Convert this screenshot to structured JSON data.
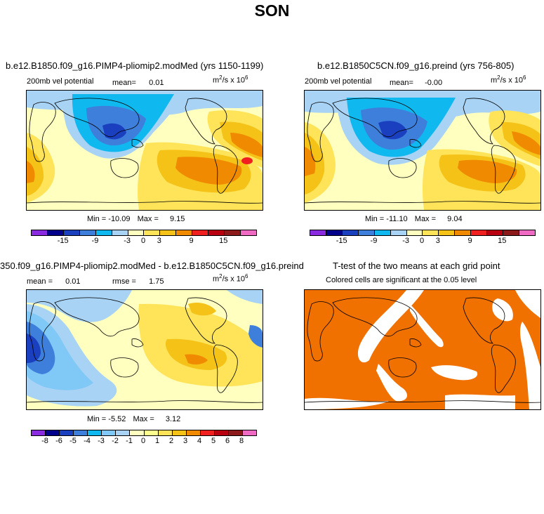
{
  "figure": {
    "title": "SON"
  },
  "panels": {
    "top_left": {
      "title": "b.e12.B1850.f09_g16.PIMP4-pliomip2.modMed (yrs 1150-1199)",
      "left_label": "200mb vel potential",
      "mean_label": "mean=",
      "mean_value": "0.01",
      "units_base": "m",
      "units_exp": "2",
      "units_mid": "/s x 10",
      "units_pow": "6",
      "min_label": "Min =",
      "min_value": "-10.09",
      "max_label": "Max =",
      "max_value": "9.15",
      "colorbar_ticks": [
        "-15",
        "-9",
        "-3",
        "0",
        "3",
        "9",
        "15"
      ]
    },
    "top_right": {
      "title": "b.e12.B1850C5CN.f09_g16.preind (yrs 756-805)",
      "left_label": "200mb vel potential",
      "mean_label": "mean=",
      "mean_value": "-0.00",
      "units_base": "m",
      "units_exp": "2",
      "units_mid": "/s x 10",
      "units_pow": "6",
      "min_label": "Min =",
      "min_value": "-11.10",
      "max_label": "Max =",
      "max_value": "9.04",
      "colorbar_ticks": [
        "-15",
        "-9",
        "-3",
        "0",
        "3",
        "9",
        "15"
      ]
    },
    "bottom_left": {
      "title": "350.f09_g16.PIMP4-pliomip2.modMed - b.e12.B1850C5CN.f09_g16.preind",
      "mean_label": "mean =",
      "mean_value": "0.01",
      "rmse_label": "rmse =",
      "rmse_value": "1.75",
      "units_base": "m",
      "units_exp": "2",
      "units_mid": "/s x 10",
      "units_pow": "6",
      "min_label": "Min =",
      "min_value": "-5.52",
      "max_label": "Max =",
      "max_value": "3.12",
      "colorbar_ticks": [
        "-8",
        "-6",
        "-5",
        "-4",
        "-3",
        "-2",
        "-1",
        "0",
        "1",
        "2",
        "3",
        "4",
        "5",
        "6",
        "8"
      ]
    },
    "bottom_right": {
      "title": "T-test of the two means at each grid point",
      "subtitle": "Colored cells are significant at the 0.05 level"
    }
  },
  "colors": {
    "main_scale": [
      "#8a2be2",
      "#00008b",
      "#1a3fbf",
      "#3f7fdc",
      "#10b8f0",
      "#a8d3f5",
      "#ffffc0",
      "#ffe45a",
      "#f5c218",
      "#f08a00",
      "#f02020",
      "#b80010",
      "#8c1a1a",
      "#ee6ac3"
    ],
    "diff_scale": [
      "#8a2be2",
      "#00008b",
      "#1a3fbf",
      "#3f7fdc",
      "#10b8f0",
      "#80c8f5",
      "#a8d3f5",
      "#ffffc0",
      "#ffff90",
      "#ffe45a",
      "#f5c218",
      "#f08a00",
      "#f02020",
      "#b80010",
      "#8c1a1a",
      "#ee6ac3"
    ],
    "significant": "#f07000"
  }
}
